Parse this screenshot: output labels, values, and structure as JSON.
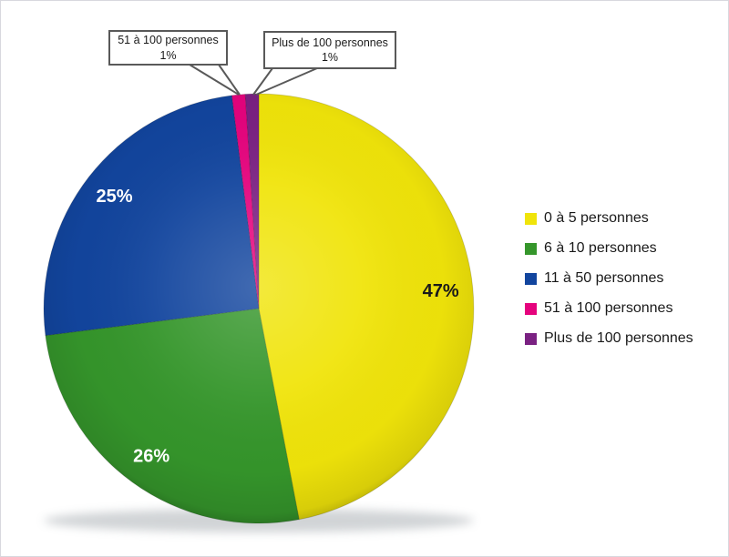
{
  "chart_data": {
    "type": "pie",
    "title": "",
    "categories": [
      "0 à 5 personnes",
      "6 à 10 personnes",
      "11 à 50 personnes",
      "51 à 100 personnes",
      "Plus de 100 personnes"
    ],
    "values": [
      47,
      26,
      25,
      1,
      1
    ],
    "labels": [
      "47%",
      "26%",
      "25%",
      "1%",
      "1%"
    ],
    "colors": [
      "#F0E40A",
      "#35962B",
      "#12459E",
      "#E5037D",
      "#7A2182"
    ],
    "label_text_colors": [
      "#1A1A1A",
      "#FFFFFF",
      "#FFFFFF",
      "",
      ""
    ],
    "legend_position": "right",
    "start_angle": "top",
    "direction": "clockwise"
  },
  "callouts": [
    {
      "line1": "51 à 100 personnes",
      "line2": "1%"
    },
    {
      "line1": "Plus de 100 personnes",
      "line2": "1%"
    }
  ],
  "style": {
    "callout_border_color": "#595959",
    "shadow_color": "#9aa0a6"
  }
}
